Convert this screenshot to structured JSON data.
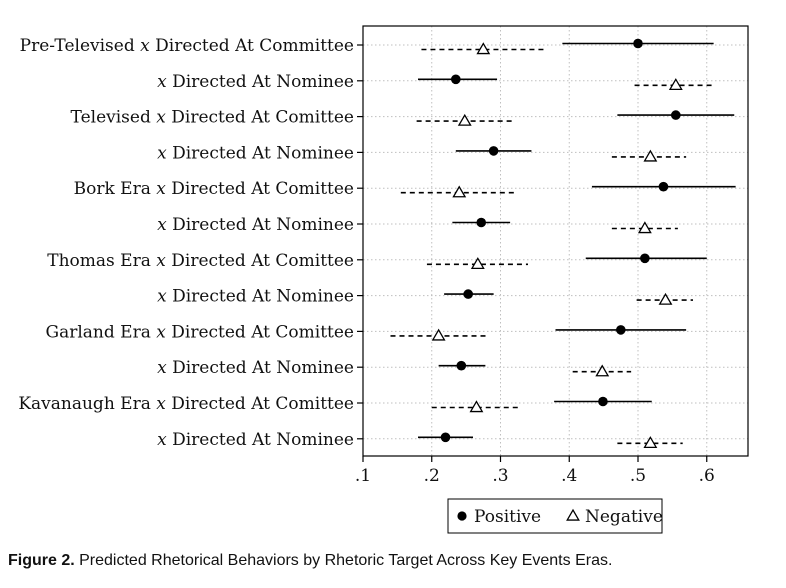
{
  "chart_data": {
    "type": "scatter",
    "subtype": "dot-and-whisker",
    "title": "",
    "xlabel": "",
    "ylabel": "",
    "xlim": [
      0.1,
      0.66
    ],
    "xticks": [
      0.1,
      0.2,
      0.3,
      0.4,
      0.5,
      0.6
    ],
    "xtick_labels": [
      ".1",
      ".2",
      ".3",
      ".4",
      ".5",
      ".6"
    ],
    "grid": true,
    "legend_position": "bottom",
    "categories": [
      {
        "prefix": "Pre-Televised ",
        "x": "x",
        "suffix": " Directed At Committee"
      },
      {
        "prefix": "",
        "x": "x",
        "suffix": " Directed At Nominee"
      },
      {
        "prefix": "Televised ",
        "x": "x",
        "suffix": " Directed At Comittee"
      },
      {
        "prefix": "",
        "x": "x",
        "suffix": " Directed At Nominee"
      },
      {
        "prefix": "Bork Era ",
        "x": "x",
        "suffix": " Directed At Comittee"
      },
      {
        "prefix": "",
        "x": "x",
        "suffix": " Directed At Nominee"
      },
      {
        "prefix": "Thomas Era ",
        "x": "x",
        "suffix": " Directed At Comittee"
      },
      {
        "prefix": "",
        "x": "x",
        "suffix": " Directed At Nominee"
      },
      {
        "prefix": "Garland Era ",
        "x": "x",
        "suffix": " Directed At Comittee"
      },
      {
        "prefix": "",
        "x": "x",
        "suffix": " Directed At Nominee"
      },
      {
        "prefix": "Kavanaugh Era ",
        "x": "x",
        "suffix": " Directed At Comittee"
      },
      {
        "prefix": "",
        "x": "x",
        "suffix": " Directed At Nominee"
      }
    ],
    "series": [
      {
        "name": "Positive",
        "marker": "filled-circle",
        "line": "solid",
        "points": [
          {
            "est": 0.5,
            "lo": 0.39,
            "hi": 0.61
          },
          {
            "est": 0.235,
            "lo": 0.18,
            "hi": 0.295
          },
          {
            "est": 0.555,
            "lo": 0.47,
            "hi": 0.64
          },
          {
            "est": 0.29,
            "lo": 0.235,
            "hi": 0.345
          },
          {
            "est": 0.537,
            "lo": 0.433,
            "hi": 0.642
          },
          {
            "est": 0.272,
            "lo": 0.23,
            "hi": 0.314
          },
          {
            "est": 0.51,
            "lo": 0.424,
            "hi": 0.6
          },
          {
            "est": 0.253,
            "lo": 0.218,
            "hi": 0.29
          },
          {
            "est": 0.475,
            "lo": 0.38,
            "hi": 0.57
          },
          {
            "est": 0.243,
            "lo": 0.21,
            "hi": 0.278
          },
          {
            "est": 0.449,
            "lo": 0.378,
            "hi": 0.52
          },
          {
            "est": 0.22,
            "lo": 0.18,
            "hi": 0.26
          }
        ]
      },
      {
        "name": "Negative",
        "marker": "hollow-triangle",
        "line": "dashed",
        "points": [
          {
            "est": 0.275,
            "lo": 0.185,
            "hi": 0.365
          },
          {
            "est": 0.555,
            "lo": 0.495,
            "hi": 0.61
          },
          {
            "est": 0.248,
            "lo": 0.178,
            "hi": 0.32
          },
          {
            "est": 0.518,
            "lo": 0.462,
            "hi": 0.57
          },
          {
            "est": 0.24,
            "lo": 0.155,
            "hi": 0.325
          },
          {
            "est": 0.51,
            "lo": 0.462,
            "hi": 0.558
          },
          {
            "est": 0.267,
            "lo": 0.193,
            "hi": 0.34
          },
          {
            "est": 0.54,
            "lo": 0.498,
            "hi": 0.58
          },
          {
            "est": 0.21,
            "lo": 0.14,
            "hi": 0.28
          },
          {
            "est": 0.448,
            "lo": 0.405,
            "hi": 0.49
          },
          {
            "est": 0.265,
            "lo": 0.2,
            "hi": 0.33
          },
          {
            "est": 0.518,
            "lo": 0.47,
            "hi": 0.565
          }
        ]
      }
    ]
  },
  "caption": {
    "label": "Figure 2.",
    "text": " Predicted Rhetorical Behaviors by Rhetoric Target Across Key Events Eras."
  }
}
